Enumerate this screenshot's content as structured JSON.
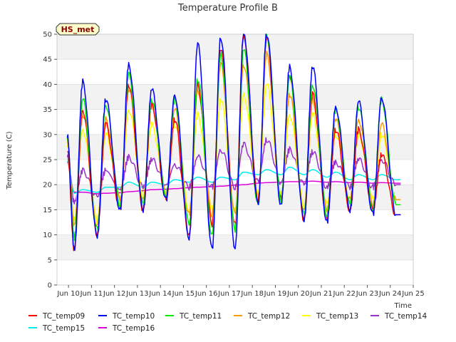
{
  "chart_data": {
    "type": "line",
    "title": "Temperature Profile B",
    "xlabel": "Time",
    "ylabel": "Temperature (C)",
    "station_label": "HS_met",
    "ylim": [
      0,
      50
    ],
    "yticks": [
      0,
      5,
      10,
      15,
      20,
      25,
      30,
      35,
      40,
      45,
      50
    ],
    "xlim": [
      "2000-06-09T12:00",
      "2000-06-25T00:00"
    ],
    "xtick_labels": [
      "Jun 10",
      "Jun 11",
      "Jun 12",
      "Jun 13",
      "Jun 14",
      "Jun 15",
      "Jun 16",
      "Jun 17",
      "Jun 18",
      "Jun 19",
      "Jun 20",
      "Jun 21",
      "Jun 22",
      "Jun 23",
      "Jun 24",
      "Jun 25"
    ],
    "grid": "horizontal bands",
    "legend_position": "bottom",
    "x_unit": "day of June",
    "days": [
      10,
      11,
      12,
      13,
      14,
      15,
      16,
      17,
      18,
      19,
      20,
      21,
      22,
      23,
      24
    ],
    "series": [
      {
        "name": "TC_temp09",
        "color": "#ff0000",
        "daily_max": [
          35,
          32,
          40,
          36,
          33,
          40,
          47,
          50,
          49,
          42,
          38,
          31,
          31,
          26
        ],
        "daily_min": [
          7,
          10,
          15,
          15,
          17,
          10,
          12,
          12,
          17,
          17,
          13,
          13,
          15,
          15,
          14
        ]
      },
      {
        "name": "TC_temp10",
        "color": "#0000ff",
        "daily_max": [
          40.5,
          37,
          44,
          39,
          38,
          48,
          49.5,
          50,
          50,
          43.5,
          43.5,
          35.5,
          36.5,
          37.5
        ],
        "daily_min": [
          7,
          9.5,
          15,
          15,
          17,
          9.5,
          7,
          7.5,
          16,
          16,
          13,
          12.5,
          15,
          14,
          14
        ]
      },
      {
        "name": "TC_temp11",
        "color": "#00ee00",
        "daily_max": [
          37,
          36,
          42,
          37,
          37,
          41,
          46,
          47,
          50,
          41.5,
          40,
          35,
          35.5,
          37
        ],
        "daily_min": [
          9.5,
          11,
          16,
          16,
          18,
          12,
          10,
          11,
          16,
          17,
          14,
          14,
          16,
          15,
          16
        ]
      },
      {
        "name": "TC_temp12",
        "color": "#ff9900",
        "daily_max": [
          34,
          33,
          39,
          36,
          35,
          39,
          44,
          44,
          46,
          38,
          37,
          33,
          33,
          32
        ],
        "daily_min": [
          12,
          12,
          17,
          17,
          18,
          14,
          14,
          14,
          17,
          17,
          15,
          15,
          17,
          16,
          17
        ]
      },
      {
        "name": "TC_temp13",
        "color": "#ffff00",
        "daily_max": [
          31,
          30,
          35,
          32,
          32,
          34,
          37,
          38,
          40,
          34,
          34,
          30,
          30,
          30
        ],
        "daily_min": [
          13,
          13,
          17,
          18,
          18,
          15,
          15,
          15,
          18,
          18,
          16,
          16,
          17,
          17,
          17
        ]
      },
      {
        "name": "TC_temp14",
        "color": "#9932cc",
        "daily_max": [
          22.8,
          22.8,
          25.5,
          25,
          24,
          25.5,
          27,
          28,
          29,
          27,
          26.5,
          24.5,
          25,
          25
        ],
        "daily_min": [
          16.5,
          17.5,
          19,
          19.5,
          20,
          19.5,
          19.5,
          19.5,
          20.5,
          20.5,
          20,
          19.5,
          19.5,
          19.5,
          20
        ]
      },
      {
        "name": "TC_temp15",
        "color": "#00eeee",
        "daily_max": [
          19,
          19.5,
          20.5,
          20.5,
          21,
          21.5,
          21.5,
          22.5,
          23,
          23.5,
          23,
          22.5,
          22,
          22
        ],
        "daily_min": [
          18.3,
          18.5,
          19.5,
          19.5,
          20,
          20.5,
          20.5,
          21,
          22,
          22,
          22,
          21.5,
          21,
          21,
          21
        ]
      },
      {
        "name": "TC_temp16",
        "color": "#dd00dd",
        "daily_max": [
          18.5,
          18.3,
          18.6,
          19.0,
          19.2,
          19.5,
          19.7,
          20.0,
          20.4,
          20.6,
          20.7,
          20.6,
          20.5,
          20.4
        ],
        "daily_min": [
          18.5,
          18.2,
          18.4,
          18.8,
          19.1,
          19.4,
          19.6,
          19.9,
          20.3,
          20.5,
          20.6,
          20.5,
          20.4,
          20.3,
          20.3
        ]
      }
    ]
  }
}
